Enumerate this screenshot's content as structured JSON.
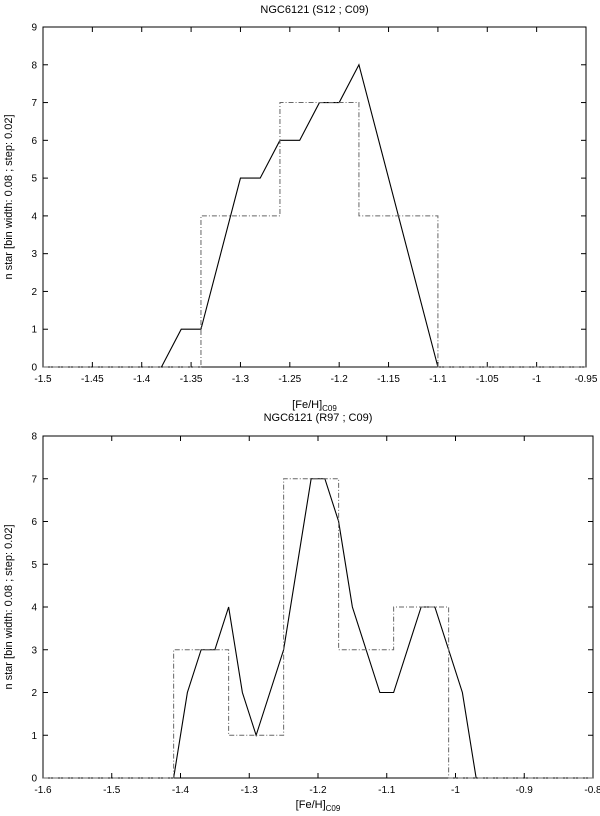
{
  "chart_data": [
    {
      "type": "line",
      "title": "NGC6121 (S12 ; C09)",
      "xlabel": "[Fe/H]",
      "xlabel_sub": "C09",
      "ylabel": "n star [bin width: 0.08 ; step: 0.02]",
      "xlim": [
        -1.5,
        -0.95
      ],
      "ylim": [
        0,
        9
      ],
      "xticks": [
        -1.5,
        -1.45,
        -1.4,
        -1.35,
        -1.3,
        -1.25,
        -1.2,
        -1.15,
        -1.1,
        -1.05,
        -1,
        -0.95
      ],
      "xtick_labels": [
        "-1.5",
        "-1.45",
        "-1.4",
        "-1.35",
        "-1.3",
        "-1.25",
        "-1.2",
        "-1.15",
        "-1.1",
        "-1.05",
        "-1",
        "-0.95"
      ],
      "yticks": [
        0,
        1,
        2,
        3,
        4,
        5,
        6,
        7,
        8,
        9
      ],
      "ytick_labels": [
        "0",
        "1",
        "2",
        "3",
        "4",
        "5",
        "6",
        "7",
        "8",
        "9"
      ],
      "grid": false,
      "series": [
        {
          "style": "solid",
          "color": "#000000",
          "x": [
            -1.5,
            -1.38,
            -1.36,
            -1.34,
            -1.32,
            -1.3,
            -1.28,
            -1.26,
            -1.24,
            -1.22,
            -1.2,
            -1.18,
            -1.1,
            -0.95
          ],
          "y": [
            0,
            0,
            1,
            1,
            3,
            5,
            5,
            6,
            6,
            7,
            7,
            8,
            0,
            0
          ]
        },
        {
          "style": "dash-dot",
          "color": "#666666",
          "x": [
            -1.5,
            -1.34,
            -1.34,
            -1.26,
            -1.26,
            -1.18,
            -1.18,
            -1.1,
            -1.1,
            -0.95
          ],
          "y": [
            0,
            0,
            4,
            4,
            7,
            7,
            4,
            4,
            0,
            0
          ]
        }
      ]
    },
    {
      "type": "line",
      "title": "NGC6121 (R97 ; C09)",
      "xlabel": "[Fe/H]",
      "xlabel_sub": "C09",
      "ylabel": "n star [bin width: 0.08 ; step: 0.02]",
      "xlim": [
        -1.6,
        -0.8
      ],
      "ylim": [
        0,
        8
      ],
      "xticks": [
        -1.6,
        -1.5,
        -1.4,
        -1.3,
        -1.2,
        -1.1,
        -1,
        -0.9,
        -0.8
      ],
      "xtick_labels": [
        "-1.6",
        "-1.5",
        "-1.4",
        "-1.3",
        "-1.2",
        "-1.1",
        "-1",
        "-0.9",
        "-0.8"
      ],
      "yticks": [
        0,
        1,
        2,
        3,
        4,
        5,
        6,
        7,
        8
      ],
      "ytick_labels": [
        "0",
        "1",
        "2",
        "3",
        "4",
        "5",
        "6",
        "7",
        "8"
      ],
      "grid": false,
      "series": [
        {
          "style": "solid",
          "color": "#000000",
          "x": [
            -1.6,
            -1.41,
            -1.39,
            -1.37,
            -1.35,
            -1.33,
            -1.31,
            -1.29,
            -1.25,
            -1.21,
            -1.19,
            -1.17,
            -1.15,
            -1.11,
            -1.09,
            -1.05,
            -1.03,
            -1.01,
            -0.99,
            -0.97,
            -0.8
          ],
          "y": [
            0,
            0,
            2,
            3,
            3,
            4,
            2,
            1,
            3,
            7,
            7,
            6,
            4,
            2,
            2,
            4,
            4,
            3,
            2,
            0,
            0
          ]
        },
        {
          "style": "dash-dot",
          "color": "#666666",
          "x": [
            -1.6,
            -1.41,
            -1.41,
            -1.33,
            -1.33,
            -1.25,
            -1.25,
            -1.17,
            -1.17,
            -1.09,
            -1.09,
            -1.01,
            -1.01,
            -0.8
          ],
          "y": [
            0,
            0,
            3,
            3,
            1,
            1,
            7,
            7,
            3,
            3,
            4,
            4,
            0,
            0
          ]
        }
      ]
    }
  ]
}
